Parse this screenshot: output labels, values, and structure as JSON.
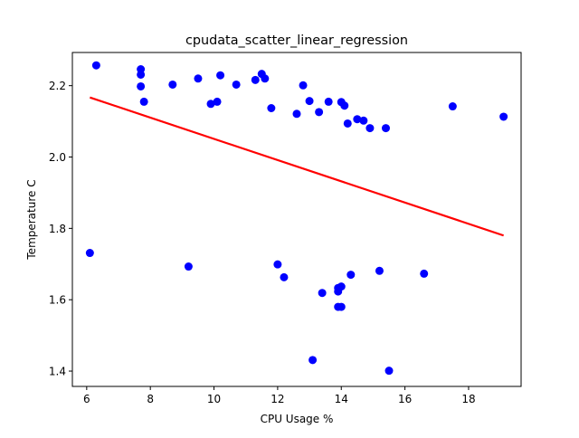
{
  "chart_data": {
    "type": "scatter",
    "title": "cpudata_scatter_linear_regression",
    "xlabel": "CPU Usage %",
    "ylabel": "Temperature C",
    "xlim": [
      5.55,
      19.65
    ],
    "ylim": [
      1.357,
      2.293
    ],
    "xticks": [
      6,
      8,
      10,
      12,
      14,
      16,
      18
    ],
    "yticks": [
      1.4,
      1.6,
      1.8,
      2.0,
      2.2
    ],
    "xtick_labels": [
      "6",
      "8",
      "10",
      "12",
      "14",
      "16",
      "18"
    ],
    "ytick_labels": [
      "1.4",
      "1.6",
      "1.8",
      "2.0",
      "2.2"
    ],
    "grid": false,
    "series": [
      {
        "kind": "scatter",
        "color": "#0000ff",
        "points": [
          [
            6.1,
            1.731
          ],
          [
            6.3,
            2.257
          ],
          [
            7.7,
            2.246
          ],
          [
            7.7,
            2.231
          ],
          [
            7.7,
            2.198
          ],
          [
            7.8,
            2.155
          ],
          [
            8.7,
            2.203
          ],
          [
            9.2,
            1.693
          ],
          [
            9.5,
            2.22
          ],
          [
            9.9,
            2.149
          ],
          [
            10.1,
            2.155
          ],
          [
            10.2,
            2.229
          ],
          [
            10.7,
            2.203
          ],
          [
            11.3,
            2.216
          ],
          [
            11.5,
            2.233
          ],
          [
            11.6,
            2.22
          ],
          [
            11.8,
            2.137
          ],
          [
            12.0,
            1.699
          ],
          [
            12.2,
            1.663
          ],
          [
            12.6,
            2.121
          ],
          [
            12.8,
            2.201
          ],
          [
            13.0,
            2.157
          ],
          [
            13.1,
            1.431
          ],
          [
            13.3,
            2.126
          ],
          [
            13.4,
            1.619
          ],
          [
            13.6,
            2.155
          ],
          [
            13.9,
            1.58
          ],
          [
            13.9,
            1.623
          ],
          [
            13.9,
            1.633
          ],
          [
            14.0,
            1.58
          ],
          [
            14.0,
            1.637
          ],
          [
            14.0,
            2.154
          ],
          [
            14.1,
            2.144
          ],
          [
            14.2,
            2.094
          ],
          [
            14.3,
            1.67
          ],
          [
            14.5,
            2.106
          ],
          [
            14.7,
            2.102
          ],
          [
            14.9,
            2.081
          ],
          [
            15.2,
            1.681
          ],
          [
            15.4,
            2.081
          ],
          [
            15.5,
            1.401
          ],
          [
            16.6,
            1.673
          ],
          [
            17.5,
            2.142
          ],
          [
            19.1,
            2.113
          ]
        ]
      },
      {
        "kind": "line",
        "color": "#ff0000",
        "points": [
          [
            6.1,
            2.167
          ],
          [
            19.1,
            1.78
          ]
        ]
      }
    ]
  }
}
